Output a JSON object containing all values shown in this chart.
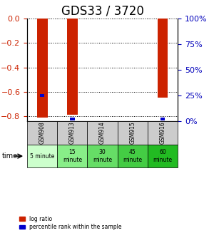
{
  "title": "GDS33 / 3720",
  "samples": [
    "GSM908",
    "GSM913",
    "GSM914",
    "GSM915",
    "GSM916"
  ],
  "time_labels": [
    "5 minute",
    "15\nminute",
    "30\nminute",
    "45\nminute",
    "60\nminute"
  ],
  "log_ratios": [
    -0.81,
    -0.79,
    0.0,
    0.0,
    -0.65
  ],
  "percentile_ranks": [
    25.0,
    2.0,
    0.0,
    0.0,
    2.0
  ],
  "ylim_left": [
    -0.84,
    0.0
  ],
  "ylim_right": [
    0,
    100
  ],
  "yticks_left": [
    0,
    -0.2,
    -0.4,
    -0.6,
    -0.8
  ],
  "yticks_right": [
    0,
    25,
    50,
    75,
    100
  ],
  "bar_color": "#cc2200",
  "pct_color": "#0000cc",
  "grid_color": "#000000",
  "title_fontsize": 12,
  "time_bg_colors": [
    "#ccffcc",
    "#88ee88",
    "#66dd66",
    "#44cc44",
    "#22bb22"
  ],
  "sample_bg_color": "#cccccc",
  "left_label_color": "#cc2200",
  "right_label_color": "#0000bb"
}
